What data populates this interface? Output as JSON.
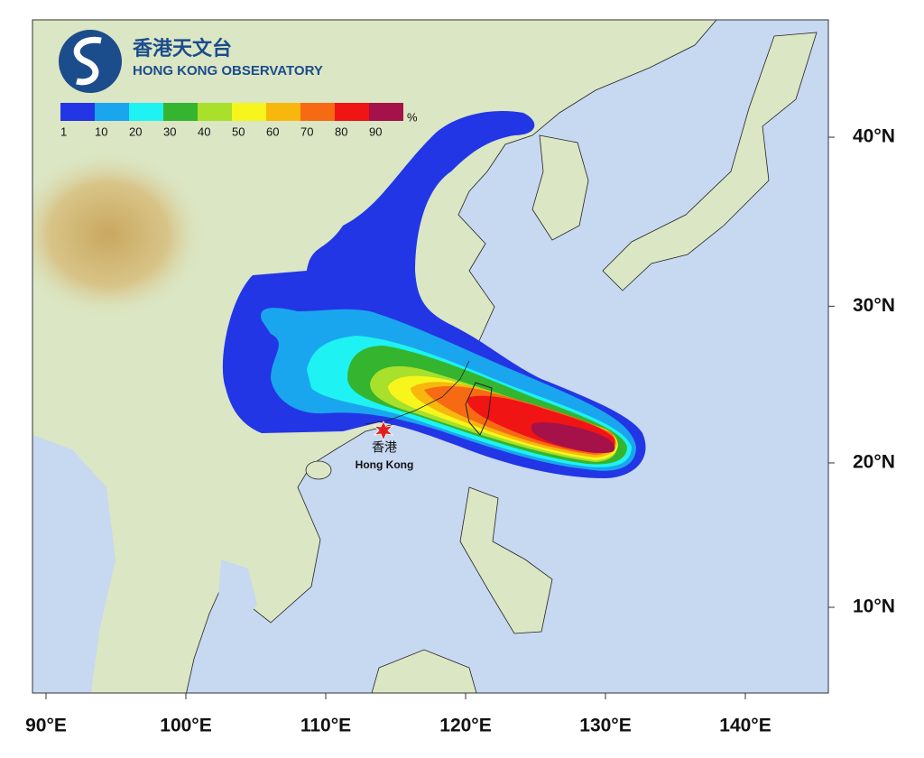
{
  "logo": {
    "title_zh": "香港天文台",
    "title_en": "HONG KONG OBSERVATORY"
  },
  "legend": {
    "unit": "%",
    "labels": [
      1,
      10,
      20,
      30,
      40,
      50,
      60,
      70,
      80,
      90
    ],
    "colors": [
      "#2236e6",
      "#1aa6ee",
      "#1ef2f2",
      "#35b52f",
      "#a8e02c",
      "#f6f61c",
      "#f8b70c",
      "#f76a14",
      "#f01414",
      "#a5124a"
    ]
  },
  "x_axis": {
    "ticks": [
      {
        "value": 90,
        "label": "90°E"
      },
      {
        "value": 100,
        "label": "100°E"
      },
      {
        "value": 110,
        "label": "110°E"
      },
      {
        "value": 120,
        "label": "120°E"
      },
      {
        "value": 130,
        "label": "130°E"
      },
      {
        "value": 140,
        "label": "140°E"
      }
    ]
  },
  "y_axis": {
    "ticks": [
      {
        "value": 10,
        "label": "10°N"
      },
      {
        "value": 20,
        "label": "20°N"
      },
      {
        "value": 30,
        "label": "30°N"
      },
      {
        "value": 40,
        "label": "40°N"
      }
    ]
  },
  "marker": {
    "label_zh": "香港",
    "label_en": "Hong Kong"
  }
}
